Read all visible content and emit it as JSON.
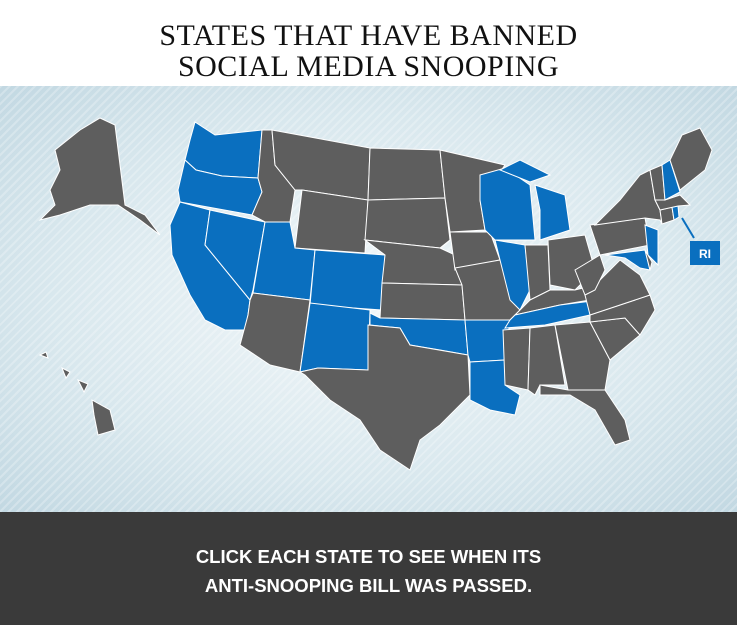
{
  "title": {
    "line1": "STATES THAT HAVE BANNED",
    "line2": "SOCIAL MEDIA SNOOPING"
  },
  "footer": {
    "line1": "CLICK EACH STATE TO SEE WHEN ITS",
    "line2": "ANTI-SNOOPING BILL WAS PASSED."
  },
  "colors": {
    "banned": "#0a6fbf",
    "not_banned": "#5e5e5e",
    "footer_bg": "#3a3a3a"
  },
  "callout": {
    "label": "RI",
    "state": "RI"
  },
  "states": [
    {
      "code": "WA",
      "banned": true
    },
    {
      "code": "OR",
      "banned": true
    },
    {
      "code": "CA",
      "banned": true
    },
    {
      "code": "NV",
      "banned": true
    },
    {
      "code": "ID",
      "banned": false
    },
    {
      "code": "MT",
      "banned": false
    },
    {
      "code": "WY",
      "banned": false
    },
    {
      "code": "UT",
      "banned": true
    },
    {
      "code": "CO",
      "banned": true
    },
    {
      "code": "AZ",
      "banned": false
    },
    {
      "code": "NM",
      "banned": true
    },
    {
      "code": "ND",
      "banned": false
    },
    {
      "code": "SD",
      "banned": false
    },
    {
      "code": "NE",
      "banned": false
    },
    {
      "code": "KS",
      "banned": false
    },
    {
      "code": "OK",
      "banned": true
    },
    {
      "code": "TX",
      "banned": false
    },
    {
      "code": "MN",
      "banned": false
    },
    {
      "code": "IA",
      "banned": false
    },
    {
      "code": "MO",
      "banned": false
    },
    {
      "code": "AR",
      "banned": true
    },
    {
      "code": "LA",
      "banned": true
    },
    {
      "code": "WI",
      "banned": true
    },
    {
      "code": "IL",
      "banned": true
    },
    {
      "code": "MI",
      "banned": true
    },
    {
      "code": "IN",
      "banned": false
    },
    {
      "code": "OH",
      "banned": false
    },
    {
      "code": "KY",
      "banned": false
    },
    {
      "code": "TN",
      "banned": true
    },
    {
      "code": "MS",
      "banned": false
    },
    {
      "code": "AL",
      "banned": false
    },
    {
      "code": "GA",
      "banned": false
    },
    {
      "code": "FL",
      "banned": false
    },
    {
      "code": "SC",
      "banned": false
    },
    {
      "code": "NC",
      "banned": false
    },
    {
      "code": "VA",
      "banned": false
    },
    {
      "code": "WV",
      "banned": false
    },
    {
      "code": "PA",
      "banned": false
    },
    {
      "code": "NY",
      "banned": false
    },
    {
      "code": "MD",
      "banned": true
    },
    {
      "code": "DE",
      "banned": false
    },
    {
      "code": "NJ",
      "banned": true
    },
    {
      "code": "CT",
      "banned": false
    },
    {
      "code": "RI",
      "banned": true
    },
    {
      "code": "MA",
      "banned": false
    },
    {
      "code": "VT",
      "banned": false
    },
    {
      "code": "NH",
      "banned": true
    },
    {
      "code": "ME",
      "banned": false
    },
    {
      "code": "AK",
      "banned": false
    },
    {
      "code": "HI",
      "banned": false
    }
  ]
}
